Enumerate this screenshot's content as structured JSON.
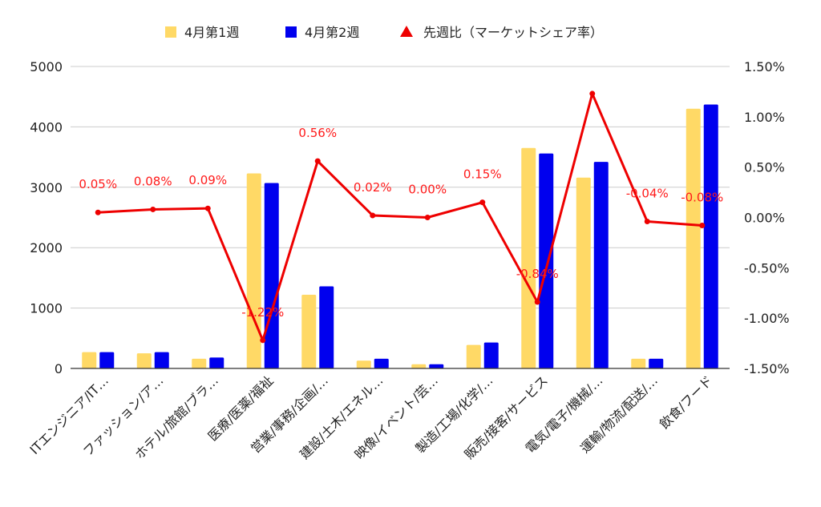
{
  "chart_data": {
    "type": "bar",
    "categories": [
      "ITエンジニア/IT…",
      "ファッション/ア…",
      "ホテル/旅館/ブラ…",
      "医療/医薬/福祉",
      "営業/事務/企画/…",
      "建設/土木/エネル…",
      "映像/イベント/芸…",
      "製造/工場/化学/…",
      "販売/接客/サービス",
      "電気/電子/機械/…",
      "運輸/物流/配送/…",
      "飲食/フード"
    ],
    "series": [
      {
        "name": "4月第1週",
        "type": "bar",
        "axis": "left",
        "color": "#FFD966",
        "values": [
          270,
          250,
          160,
          3230,
          1220,
          130,
          70,
          390,
          3650,
          3160,
          160,
          4300
        ]
      },
      {
        "name": "4月第2週",
        "type": "bar",
        "axis": "left",
        "color": "#0000EE",
        "values": [
          270,
          270,
          180,
          3070,
          1360,
          160,
          70,
          430,
          3560,
          3420,
          160,
          4370
        ]
      },
      {
        "name": "先週比（マーケットシェア率）",
        "type": "line",
        "axis": "right",
        "color": "#EE0000",
        "values": [
          0.05,
          0.08,
          0.09,
          -1.22,
          0.56,
          0.02,
          0.0,
          0.15,
          -0.84,
          1.23,
          -0.04,
          -0.08
        ]
      }
    ],
    "data_labels": [
      "0.05%",
      "0.08%",
      "0.09%",
      "-1.22%",
      "0.56%",
      "0.02%",
      "0.00%",
      "0.15%",
      "-0.84%",
      "",
      "-0.04%",
      "-0.08%"
    ],
    "y_left": {
      "ylim": [
        0,
        5000
      ],
      "ticks": [
        "5000",
        "4000",
        "3000",
        "2000",
        "1000",
        "0"
      ],
      "tick_values": [
        5000,
        4000,
        3000,
        2000,
        1000,
        0
      ]
    },
    "y_right": {
      "ylim": [
        -1.5,
        1.5
      ],
      "ticks": [
        "1.50%",
        "1.00%",
        "0.50%",
        "0.00%",
        "-0.50%",
        "-1.00%",
        "-1.50%"
      ],
      "tick_values": [
        1.5,
        1.0,
        0.5,
        0.0,
        -0.5,
        -1.0,
        -1.5
      ]
    },
    "legend": {
      "position": "top",
      "items": [
        "4月第1週",
        "4月第2週",
        "先週比（マーケットシェア率）"
      ]
    },
    "grid": true,
    "xlabel": "",
    "ylabel": "",
    "title": ""
  }
}
